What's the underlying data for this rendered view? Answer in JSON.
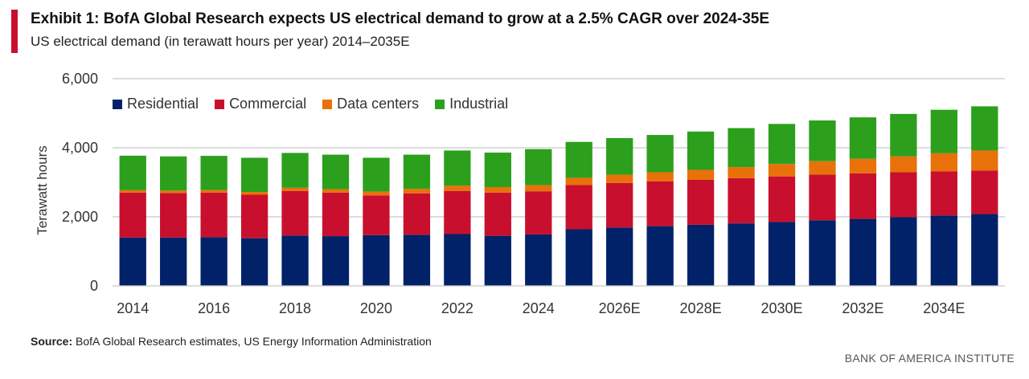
{
  "header": {
    "title": "Exhibit 1: BofA Global Research expects US electrical demand to grow at a 2.5% CAGR over 2024-35E",
    "subtitle": "US electrical demand (in terawatt hours per year) 2014–2035E",
    "accent_color": "#c8102e"
  },
  "footer": {
    "source_label": "Source:",
    "source_text": "BofA Global Research estimates, US Energy Information Administration",
    "brand": "BANK OF AMERICA INSTITUTE"
  },
  "chart_data": {
    "type": "bar",
    "stacked": true,
    "title": "Exhibit 1: BofA Global Research expects US electrical demand to grow at a 2.5% CAGR over 2024-35E",
    "subtitle": "US electrical demand (in terawatt hours per year) 2014–2035E",
    "xlabel": "",
    "ylabel": "Terawatt hours",
    "ylim": [
      0,
      6000
    ],
    "yticks": [
      0,
      2000,
      4000,
      6000
    ],
    "ytick_labels": [
      "0",
      "2,000",
      "4,000",
      "6,000"
    ],
    "grid": true,
    "legend_position": "top-left",
    "categories": [
      "2014",
      "2015",
      "2016",
      "2017",
      "2018",
      "2019",
      "2020",
      "2021",
      "2022",
      "2023",
      "2024",
      "2025E",
      "2026E",
      "2027E",
      "2028E",
      "2029E",
      "2030E",
      "2031E",
      "2032E",
      "2033E",
      "2034E",
      "2035E"
    ],
    "xtick_labels": [
      "2014",
      "",
      "2016",
      "",
      "2018",
      "",
      "2020",
      "",
      "2022",
      "",
      "2024",
      "",
      "2026E",
      "",
      "2028E",
      "",
      "2030E",
      "",
      "2032E",
      "",
      "2034E",
      ""
    ],
    "series": [
      {
        "name": "Residential",
        "color": "#012169",
        "values": [
          1400,
          1400,
          1410,
          1380,
          1460,
          1440,
          1470,
          1480,
          1500,
          1450,
          1490,
          1640,
          1690,
          1730,
          1770,
          1810,
          1850,
          1900,
          1940,
          1990,
          2040,
          2080
        ]
      },
      {
        "name": "Commercial",
        "color": "#c8102e",
        "values": [
          1300,
          1290,
          1290,
          1260,
          1290,
          1260,
          1150,
          1200,
          1250,
          1250,
          1250,
          1280,
          1290,
          1300,
          1300,
          1310,
          1320,
          1320,
          1320,
          1300,
          1280,
          1260
        ]
      },
      {
        "name": "Data centers",
        "color": "#e8710a",
        "values": [
          70,
          70,
          75,
          80,
          90,
          100,
          110,
          130,
          150,
          160,
          180,
          210,
          240,
          260,
          290,
          320,
          360,
          390,
          420,
          460,
          520,
          580
        ]
      },
      {
        "name": "Industrial",
        "color": "#2ca01c",
        "values": [
          1000,
          990,
          990,
          990,
          1010,
          1000,
          980,
          990,
          1020,
          1000,
          1040,
          1040,
          1060,
          1080,
          1110,
          1130,
          1160,
          1180,
          1200,
          1230,
          1260,
          1280
        ]
      }
    ]
  }
}
